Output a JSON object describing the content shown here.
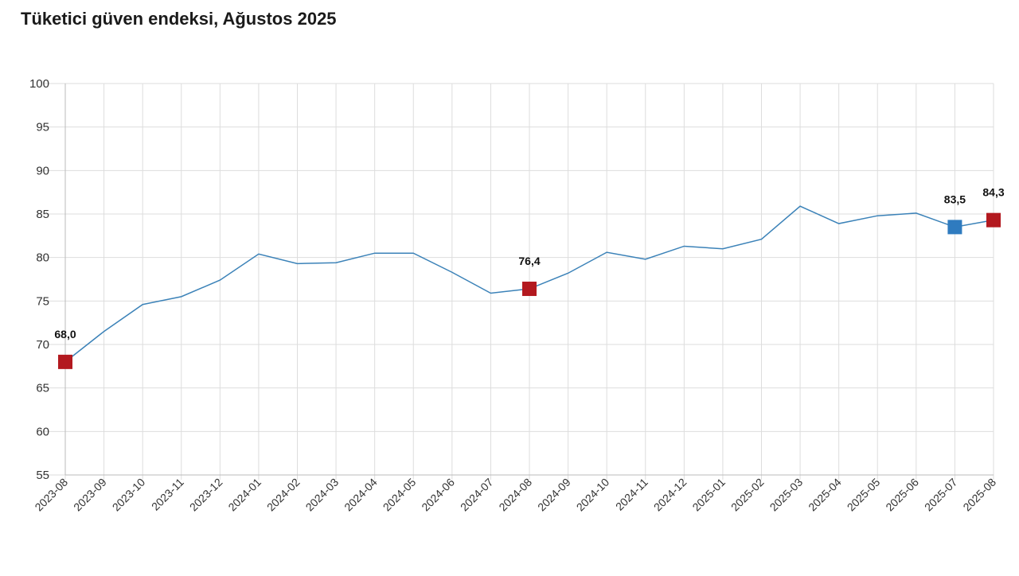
{
  "title": "Tüketici güven endeksi, Ağustos 2025",
  "chart_data": {
    "type": "line",
    "title": "Tüketici güven endeksi, Ağustos 2025",
    "xlabel": "",
    "ylabel": "",
    "ylim": [
      55,
      100
    ],
    "yticks": [
      55,
      60,
      65,
      70,
      75,
      80,
      85,
      90,
      95,
      100
    ],
    "grid": true,
    "categories": [
      "2023-08",
      "2023-09",
      "2023-10",
      "2023-11",
      "2023-12",
      "2024-01",
      "2024-02",
      "2024-03",
      "2024-04",
      "2024-05",
      "2024-06",
      "2024-07",
      "2024-08",
      "2024-09",
      "2024-10",
      "2024-11",
      "2024-12",
      "2025-01",
      "2025-02",
      "2025-03",
      "2025-04",
      "2025-05",
      "2025-06",
      "2025-07",
      "2025-08"
    ],
    "series": [
      {
        "values": [
          68.0,
          71.5,
          74.6,
          75.5,
          77.4,
          80.4,
          79.3,
          79.4,
          80.5,
          80.5,
          78.3,
          75.9,
          76.4,
          78.2,
          80.6,
          79.8,
          81.3,
          81.0,
          82.1,
          85.9,
          83.9,
          84.8,
          85.1,
          83.5,
          84.3
        ],
        "color": "#3b82b8"
      }
    ],
    "highlights": [
      {
        "category": "2023-08",
        "value": 68.0,
        "label": "68,0",
        "color": "#b3191f"
      },
      {
        "category": "2024-08",
        "value": 76.4,
        "label": "76,4",
        "color": "#b3191f"
      },
      {
        "category": "2025-07",
        "value": 83.5,
        "label": "83,5",
        "color": "#2f7bbf"
      },
      {
        "category": "2025-08",
        "value": 84.3,
        "label": "84,3",
        "color": "#b3191f"
      }
    ],
    "colors": {
      "grid": "#dddddd",
      "axis": "#bbbbbb",
      "line": "#3b82b8"
    }
  }
}
